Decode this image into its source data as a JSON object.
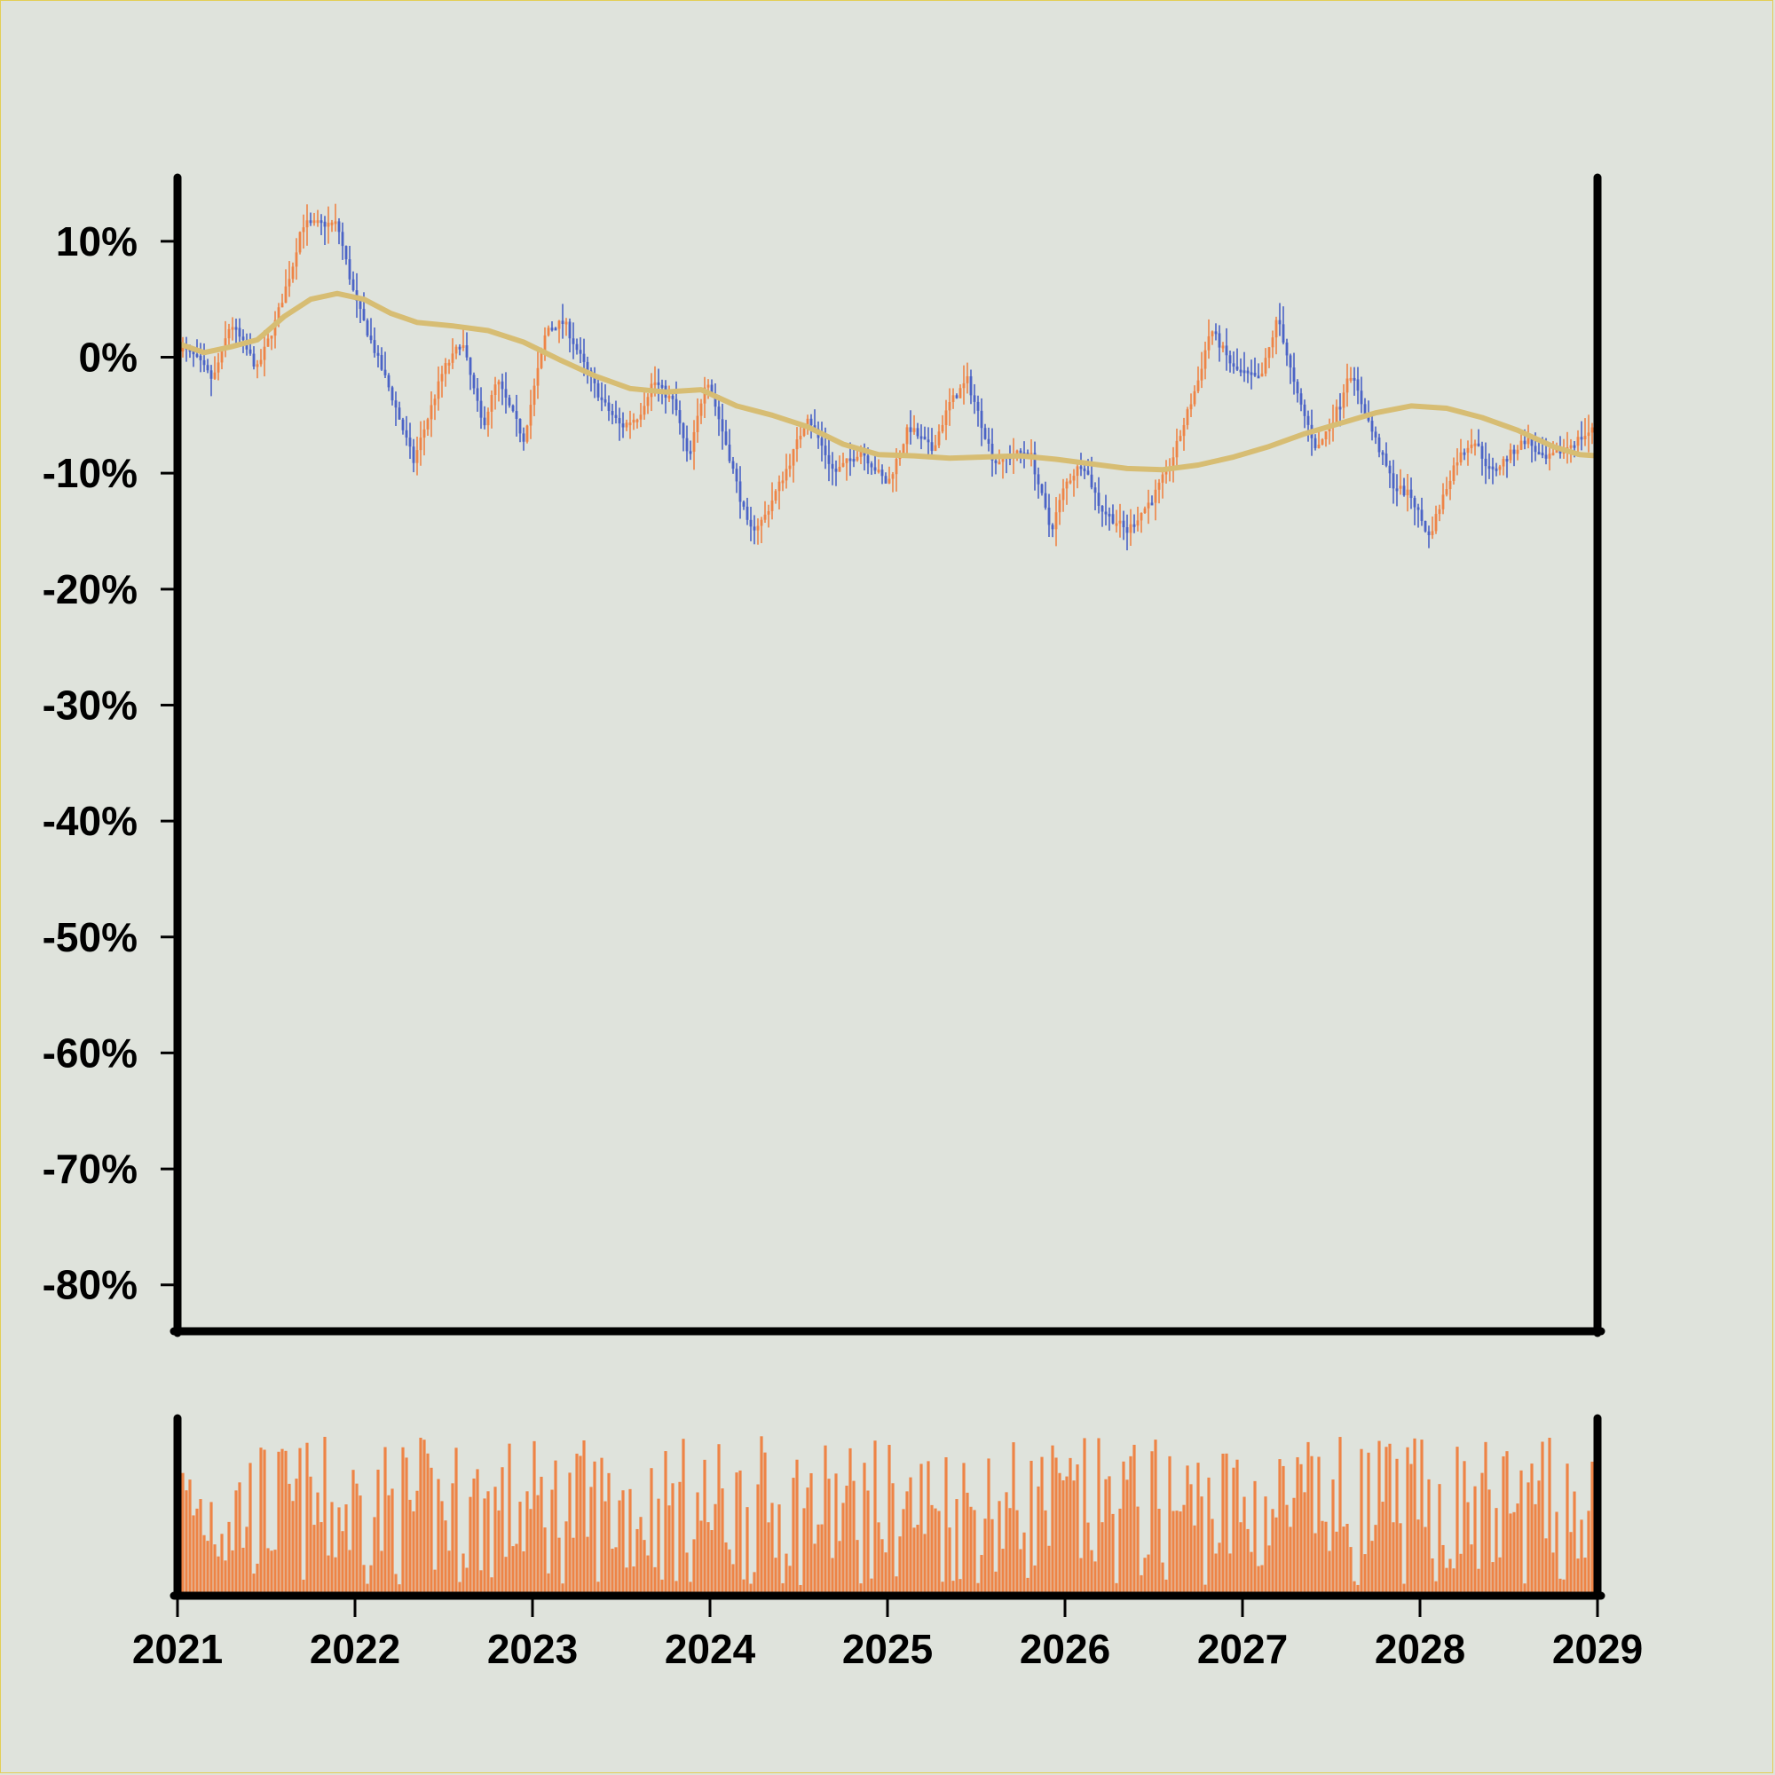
{
  "colors": {
    "background": "#dfe3dc",
    "up": "#ee8446",
    "down": "#4b63c6",
    "moving_average": "#d7bd73",
    "volume": "#ee8446",
    "axis": "#000000"
  },
  "chart_data": {
    "type": "candlestick",
    "title": "",
    "xlabel": "",
    "ylabel": "",
    "grid": false,
    "legend": "none",
    "x_range": [
      2021,
      2029
    ],
    "ylim": [
      -84,
      15.5
    ],
    "y_ticks": [
      {
        "value": 10,
        "label": "10%"
      },
      {
        "value": 0,
        "label": "0%"
      },
      {
        "value": -10,
        "label": "-10%"
      },
      {
        "value": -20,
        "label": "-20%"
      },
      {
        "value": -30,
        "label": "-30%"
      },
      {
        "value": -40,
        "label": "-40%"
      },
      {
        "value": -50,
        "label": "-50%"
      },
      {
        "value": -60,
        "label": "-60%"
      },
      {
        "value": -70,
        "label": "-70%"
      },
      {
        "value": -80,
        "label": "-80%"
      }
    ],
    "x_ticks": [
      {
        "value": 2021,
        "label": "2021"
      },
      {
        "value": 2022,
        "label": "2022"
      },
      {
        "value": 2023,
        "label": "2023"
      },
      {
        "value": 2024,
        "label": "2024"
      },
      {
        "value": 2025,
        "label": "2025"
      },
      {
        "value": 2026,
        "label": "2026"
      },
      {
        "value": 2027,
        "label": "2027"
      },
      {
        "value": 2028,
        "label": "2028"
      },
      {
        "value": 2029,
        "label": "2029"
      }
    ],
    "close_path": [
      [
        2021.0,
        1
      ],
      [
        2021.1,
        0
      ],
      [
        2021.2,
        -2
      ],
      [
        2021.3,
        3
      ],
      [
        2021.45,
        -1
      ],
      [
        2021.55,
        3
      ],
      [
        2021.65,
        8
      ],
      [
        2021.7,
        11.5
      ],
      [
        2021.9,
        11.5
      ],
      [
        2022.0,
        5
      ],
      [
        2022.2,
        -3
      ],
      [
        2022.33,
        -9
      ],
      [
        2022.5,
        -1
      ],
      [
        2022.55,
        0
      ],
      [
        2022.6,
        1.5
      ],
      [
        2022.72,
        -6
      ],
      [
        2022.8,
        -2
      ],
      [
        2022.95,
        -7
      ],
      [
        2023.08,
        2.5
      ],
      [
        2023.18,
        3
      ],
      [
        2023.3,
        -1
      ],
      [
        2023.4,
        -4
      ],
      [
        2023.5,
        -6
      ],
      [
        2023.6,
        -5
      ],
      [
        2023.68,
        -2
      ],
      [
        2023.8,
        -4
      ],
      [
        2023.88,
        -9
      ],
      [
        2023.98,
        -1.5
      ],
      [
        2024.1,
        -8
      ],
      [
        2024.22,
        -15
      ],
      [
        2024.3,
        -14
      ],
      [
        2024.45,
        -9
      ],
      [
        2024.55,
        -5
      ],
      [
        2024.7,
        -10
      ],
      [
        2024.85,
        -8
      ],
      [
        2025.0,
        -11
      ],
      [
        2025.12,
        -6
      ],
      [
        2025.25,
        -8
      ],
      [
        2025.35,
        -4
      ],
      [
        2025.45,
        -2
      ],
      [
        2025.6,
        -9
      ],
      [
        2025.8,
        -8
      ],
      [
        2025.92,
        -15
      ],
      [
        2026.0,
        -11
      ],
      [
        2026.1,
        -9
      ],
      [
        2026.2,
        -13
      ],
      [
        2026.35,
        -15
      ],
      [
        2026.5,
        -12
      ],
      [
        2026.6,
        -9
      ],
      [
        2026.75,
        -2
      ],
      [
        2026.82,
        2.5
      ],
      [
        2026.95,
        -1
      ],
      [
        2027.1,
        -2
      ],
      [
        2027.2,
        3.5
      ],
      [
        2027.3,
        -3
      ],
      [
        2027.42,
        -8
      ],
      [
        2027.55,
        -4
      ],
      [
        2027.6,
        -1
      ],
      [
        2027.72,
        -6
      ],
      [
        2027.85,
        -11
      ],
      [
        2027.95,
        -12
      ],
      [
        2028.05,
        -15.5
      ],
      [
        2028.2,
        -9
      ],
      [
        2028.3,
        -7
      ],
      [
        2028.4,
        -10
      ],
      [
        2028.6,
        -7
      ],
      [
        2028.7,
        -9
      ],
      [
        2028.8,
        -8
      ],
      [
        2028.9,
        -7
      ],
      [
        2029.0,
        -6
      ]
    ],
    "moving_average": [
      [
        2021.0,
        1.2
      ],
      [
        2021.15,
        0.4
      ],
      [
        2021.3,
        0.9
      ],
      [
        2021.45,
        1.5
      ],
      [
        2021.6,
        3.5
      ],
      [
        2021.75,
        5.0
      ],
      [
        2021.9,
        5.5
      ],
      [
        2022.05,
        5.0
      ],
      [
        2022.2,
        3.8
      ],
      [
        2022.35,
        3.0
      ],
      [
        2022.55,
        2.7
      ],
      [
        2022.75,
        2.3
      ],
      [
        2022.95,
        1.3
      ],
      [
        2023.15,
        -0.2
      ],
      [
        2023.35,
        -1.6
      ],
      [
        2023.55,
        -2.7
      ],
      [
        2023.75,
        -3.0
      ],
      [
        2023.95,
        -2.8
      ],
      [
        2024.15,
        -4.2
      ],
      [
        2024.35,
        -5.0
      ],
      [
        2024.55,
        -6.0
      ],
      [
        2024.75,
        -7.5
      ],
      [
        2024.95,
        -8.4
      ],
      [
        2025.15,
        -8.5
      ],
      [
        2025.35,
        -8.7
      ],
      [
        2025.55,
        -8.6
      ],
      [
        2025.75,
        -8.5
      ],
      [
        2025.95,
        -8.8
      ],
      [
        2026.15,
        -9.2
      ],
      [
        2026.35,
        -9.6
      ],
      [
        2026.55,
        -9.7
      ],
      [
        2026.75,
        -9.3
      ],
      [
        2026.95,
        -8.6
      ],
      [
        2027.15,
        -7.7
      ],
      [
        2027.35,
        -6.6
      ],
      [
        2027.55,
        -5.7
      ],
      [
        2027.75,
        -4.8
      ],
      [
        2027.95,
        -4.2
      ],
      [
        2028.15,
        -4.4
      ],
      [
        2028.35,
        -5.2
      ],
      [
        2028.55,
        -6.3
      ],
      [
        2028.75,
        -7.7
      ],
      [
        2028.9,
        -8.4
      ],
      [
        2029.0,
        -8.5
      ]
    ],
    "volume_note": "relative weekly volume bars (0–1 scale), one per candle",
    "volume_seed": 7
  }
}
